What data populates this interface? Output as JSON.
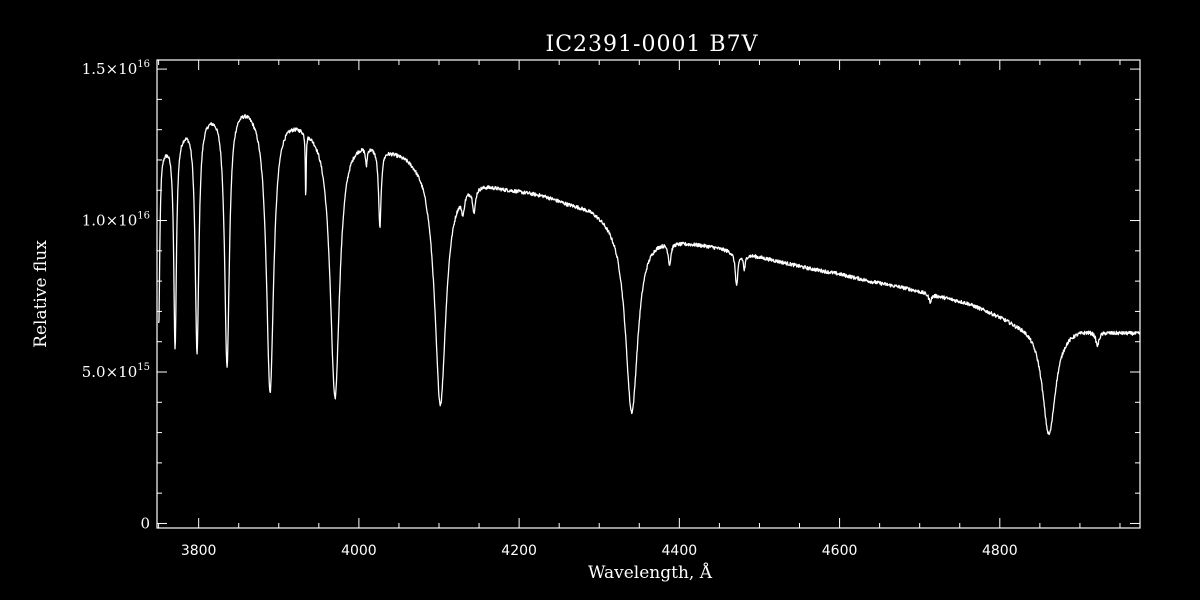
{
  "chart_data": {
    "type": "line",
    "title": "IC2391-0001   B7V",
    "xlabel": "Wavelength, Å",
    "ylabel": "Relative flux",
    "xlim": [
      3748,
      4975
    ],
    "ylim": [
      -150000000000000.0,
      1.53e+16
    ],
    "x_ticks": [
      {
        "value": 3800,
        "label": "3800"
      },
      {
        "value": 4000,
        "label": "4000"
      },
      {
        "value": 4200,
        "label": "4200"
      },
      {
        "value": 4400,
        "label": "4400"
      },
      {
        "value": 4600,
        "label": "4600"
      },
      {
        "value": 4800,
        "label": "4800"
      }
    ],
    "y_ticks": [
      {
        "value": 0,
        "mantissa": "0",
        "exponent": ""
      },
      {
        "value": 5000000000000000.0,
        "mantissa": "5.0×10",
        "exponent": "15"
      },
      {
        "value": 1e+16,
        "mantissa": "1.0×10",
        "exponent": "16"
      },
      {
        "value": 1.5e+16,
        "mantissa": "1.5×10",
        "exponent": "16"
      }
    ],
    "grid": false,
    "line_color": "#ffffff",
    "background": "#000000",
    "series": [
      {
        "continuum": [
          [
            3748,
            12.4
          ],
          [
            3760,
            12.6
          ],
          [
            3775,
            13.0
          ],
          [
            3790,
            13.4
          ],
          [
            3805,
            13.6
          ],
          [
            3820,
            13.8
          ],
          [
            3840,
            14.0
          ],
          [
            3860,
            14.0
          ],
          [
            3880,
            13.8
          ],
          [
            3900,
            13.7
          ],
          [
            3920,
            13.5
          ],
          [
            3940,
            13.3
          ],
          [
            3960,
            13.1
          ],
          [
            3980,
            12.95
          ],
          [
            4000,
            12.85
          ],
          [
            4020,
            12.7
          ],
          [
            4040,
            12.5
          ],
          [
            4060,
            12.35
          ],
          [
            4080,
            12.1
          ],
          [
            4100,
            11.6
          ],
          [
            4120,
            11.45
          ],
          [
            4140,
            11.4
          ],
          [
            4160,
            11.3
          ],
          [
            4180,
            11.15
          ],
          [
            4200,
            11.05
          ],
          [
            4230,
            10.9
          ],
          [
            4260,
            10.65
          ],
          [
            4290,
            10.5
          ],
          [
            4320,
            10.15
          ],
          [
            4340,
            9.9
          ],
          [
            4360,
            9.7
          ],
          [
            4380,
            9.55
          ],
          [
            4400,
            9.4
          ],
          [
            4440,
            9.2
          ],
          [
            4480,
            8.95
          ],
          [
            4520,
            8.7
          ],
          [
            4560,
            8.45
          ],
          [
            4600,
            8.25
          ],
          [
            4640,
            8.0
          ],
          [
            4680,
            7.8
          ],
          [
            4720,
            7.55
          ],
          [
            4760,
            7.3
          ],
          [
            4790,
            7.0
          ],
          [
            4820,
            6.7
          ],
          [
            4860,
            6.55
          ],
          [
            4900,
            6.5
          ],
          [
            4940,
            6.35
          ],
          [
            4975,
            6.3
          ]
        ],
        "lines": [
          {
            "center": 3750.2,
            "depth": 5.8,
            "width": 1.5
          },
          {
            "center": 3770.6,
            "depth": 7.0,
            "width": 2.0
          },
          {
            "center": 3797.9,
            "depth": 7.7,
            "width": 2.8
          },
          {
            "center": 3835.4,
            "depth": 8.6,
            "width": 3.6
          },
          {
            "center": 3889.1,
            "depth": 9.3,
            "width": 5.5
          },
          {
            "center": 3933.7,
            "depth": 2.2,
            "width": 0.6
          },
          {
            "center": 3970.1,
            "depth": 8.8,
            "width": 7.0
          },
          {
            "center": 4009.3,
            "depth": 0.6,
            "width": 1.2
          },
          {
            "center": 4026.2,
            "depth": 2.6,
            "width": 2.0
          },
          {
            "center": 4101.7,
            "depth": 7.6,
            "width": 8.5
          },
          {
            "center": 4130.0,
            "depth": 0.6,
            "width": 2.0
          },
          {
            "center": 4143.8,
            "depth": 0.8,
            "width": 2.0
          },
          {
            "center": 4340.5,
            "depth": 6.2,
            "width": 9.5
          },
          {
            "center": 4387.9,
            "depth": 0.7,
            "width": 2.0
          },
          {
            "center": 4471.5,
            "depth": 1.1,
            "width": 2.0
          },
          {
            "center": 4481.2,
            "depth": 0.5,
            "width": 1.5
          },
          {
            "center": 4713.0,
            "depth": 0.25,
            "width": 2.0
          },
          {
            "center": 4861.3,
            "depth": 3.6,
            "width": 10.0
          },
          {
            "center": 4921.9,
            "depth": 0.45,
            "width": 2.5
          }
        ],
        "flux_unit": 1000000000000000.0
      }
    ]
  }
}
